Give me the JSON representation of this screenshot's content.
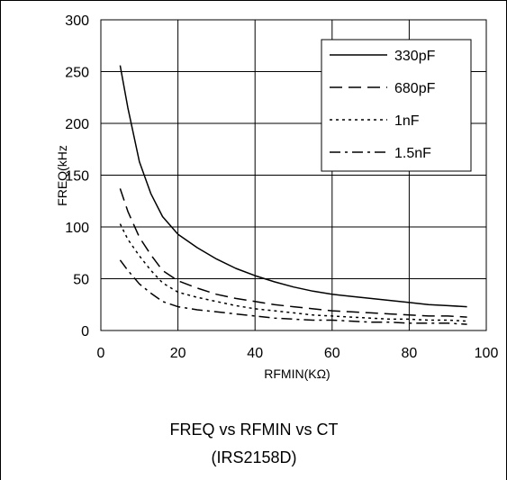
{
  "chart_data": {
    "type": "line",
    "title": "FREQ vs RFMIN vs CT",
    "subtitle": "(IRS2158D)",
    "xlabel": "RFMIN(KΩ)",
    "ylabel": "FREQ(kHz",
    "xlim": [
      0,
      100
    ],
    "ylim": [
      0,
      300
    ],
    "x_ticks": [
      0,
      20,
      40,
      60,
      80,
      100
    ],
    "y_ticks": [
      0,
      50,
      100,
      150,
      200,
      250,
      300
    ],
    "grid": true,
    "legend_position": "top-right",
    "series": [
      {
        "name": "330pF",
        "style": "solid",
        "x": [
          5,
          7,
          10,
          13,
          16,
          20,
          25,
          30,
          35,
          40,
          45,
          50,
          55,
          60,
          65,
          70,
          75,
          80,
          85,
          90,
          95
        ],
        "y": [
          256,
          215,
          163,
          132,
          110,
          93,
          80,
          69,
          60,
          53,
          47,
          42,
          38,
          35,
          33,
          31,
          29,
          27,
          25,
          24,
          23
        ]
      },
      {
        "name": "680pF",
        "style": "dashed",
        "x": [
          5,
          7,
          10,
          13,
          16,
          20,
          25,
          30,
          35,
          40,
          45,
          50,
          55,
          60,
          65,
          70,
          75,
          80,
          85,
          90,
          95
        ],
        "y": [
          137,
          115,
          90,
          73,
          58,
          48,
          41,
          35,
          31,
          28,
          25,
          23,
          21,
          19,
          18,
          17,
          16,
          15,
          14,
          14,
          13
        ]
      },
      {
        "name": "1nF",
        "style": "dotted",
        "x": [
          5,
          7,
          10,
          13,
          16,
          20,
          25,
          30,
          35,
          40,
          45,
          50,
          55,
          60,
          65,
          70,
          75,
          80,
          85,
          90,
          95
        ],
        "y": [
          103,
          88,
          72,
          58,
          46,
          37,
          32,
          28,
          24,
          21,
          19,
          17,
          15,
          14,
          13,
          12,
          11,
          11,
          10,
          10,
          9
        ]
      },
      {
        "name": "1.5nF",
        "style": "dashdot",
        "x": [
          5,
          7,
          10,
          13,
          16,
          20,
          25,
          30,
          35,
          40,
          45,
          50,
          55,
          60,
          65,
          70,
          75,
          80,
          85,
          90,
          95
        ],
        "y": [
          68,
          58,
          45,
          36,
          28,
          23,
          20,
          18,
          16,
          14,
          12,
          11,
          10,
          10,
          9,
          8,
          8,
          7,
          7,
          7,
          6
        ]
      }
    ]
  }
}
